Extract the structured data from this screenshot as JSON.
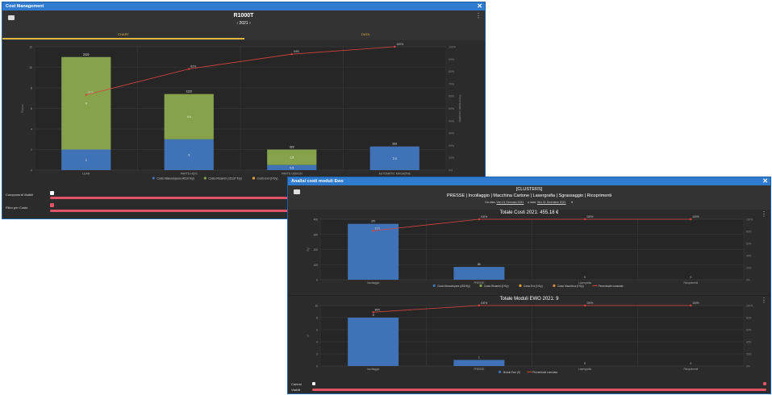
{
  "window1": {
    "title": "Cost Management",
    "close": "✕",
    "header_title": "R1000T",
    "year": "2021",
    "prev": "‹",
    "next": "›",
    "tabs": [
      {
        "label": "CHART",
        "active": true
      },
      {
        "label": "DATA",
        "active": false
      }
    ],
    "controls": [
      {
        "label": "Componenti Visibili"
      },
      {
        "label": "Filtro per Costo"
      }
    ],
    "chart_data": {
      "type": "bar",
      "categories": [
        "LEAN",
        "PARTS HQ/S",
        "PARTS DESIGN",
        "AUTOMATIC MAGAZINE"
      ],
      "series": [
        {
          "name": "Costo Manodopera (4510 €/y)",
          "color": "#3f72b6",
          "values": [
            2.0,
            3.0,
            0.5,
            2.3
          ]
        },
        {
          "name": "Costo Ricambi (15137 €/y)",
          "color": "#86a34b",
          "values": [
            9.0,
            4.4,
            1.5,
            0.0
          ]
        },
        {
          "name": "Costo Ext (0 €/y)",
          "color": "#e0a53a",
          "values": [
            0,
            0,
            0,
            0
          ]
        }
      ],
      "cumulative": {
        "name": "Percentuale cumulata",
        "color": "#d9453f",
        "values": [
          61,
          82,
          94,
          100
        ]
      },
      "totals": [
        "2222",
        "1122",
        "222",
        "222"
      ],
      "ylim": [
        0,
        12
      ],
      "yticks": [
        "0",
        "2",
        "4",
        "6",
        "8",
        "10",
        "12"
      ],
      "ylim_right": [
        0,
        100
      ],
      "yticks_right": [
        "0%",
        "10%",
        "20%",
        "30%",
        "40%",
        "50%",
        "60%",
        "70%",
        "80%",
        "90%",
        "100%"
      ],
      "ylabel": "€/anno",
      "ylabel_right": "Percentuale cumulata"
    }
  },
  "window2": {
    "title": "Analisi costi moduli Ewo",
    "close": "✕",
    "cluster_title": "[CLUSTERS]",
    "cluster_list": "PRESSE | Incollaggio | Macchina Cartone | Lasergrafia | Sgrassaggio | Ricoprimenti",
    "date_from_label": "Da data:",
    "date_from": "Ven 01 Gennaio 2021",
    "date_to_label": "a data:",
    "date_to": "Ven 31 Dicembre 2021",
    "chart1": {
      "title": "Totale Costi 2021: 455.18 €",
      "type": "bar",
      "categories": [
        "Incollaggio",
        "PRESSE",
        "Lasergrafia",
        "Ricoprimenti"
      ],
      "series": [
        {
          "name": "Costo Manodopera (455 €/y)",
          "color": "#3f72b6",
          "values": [
            370,
            85,
            0,
            0
          ]
        },
        {
          "name": "Costo Ricambi (0 €/y)",
          "color": "#86a34b",
          "values": [
            0,
            0,
            0,
            0
          ]
        },
        {
          "name": "Costo Ext (0 €/y)",
          "color": "#e0a53a",
          "values": [
            0,
            0,
            0,
            0
          ]
        },
        {
          "name": "Costo Macchina (0 €/y)",
          "color": "#d98c3a",
          "values": [
            0,
            0,
            0,
            0
          ]
        }
      ],
      "cumulative": {
        "name": "Percentuale cumulata",
        "color": "#d9453f",
        "values": [
          81,
          100,
          100,
          100
        ]
      },
      "bar_labels": [
        "370",
        "85",
        "0",
        "0"
      ],
      "ylim": [
        0,
        400
      ],
      "yticks": [
        "0",
        "100",
        "200",
        "300",
        "400"
      ],
      "ylim_right": [
        0,
        100
      ],
      "yticks_right": [
        "0%",
        "20%",
        "40%",
        "60%",
        "80%",
        "100%"
      ],
      "ylabel": "€/y"
    },
    "chart2": {
      "title": "Totale Moduli EWO 2021: 9",
      "type": "bar",
      "categories": [
        "Incollaggio",
        "PRESSE",
        "Lasergrafia",
        "Ricoprimenti"
      ],
      "series": [
        {
          "name": "Moduli Ewo (9)",
          "color": "#3f72b6",
          "values": [
            8,
            1,
            0,
            0
          ]
        }
      ],
      "cumulative": {
        "name": "Percentuale cumulata",
        "color": "#d9453f",
        "values": [
          89,
          100,
          100,
          100
        ]
      },
      "bar_labels": [
        "8",
        "1",
        "0",
        "0"
      ],
      "ylim": [
        0,
        10
      ],
      "yticks": [
        "0",
        "2",
        "4",
        "6",
        "8",
        "10"
      ],
      "ylim_right": [
        0,
        100
      ],
      "yticks_right": [
        "0%",
        "20%",
        "40%",
        "60%",
        "80%",
        "100%"
      ],
      "ylabel": "n°"
    },
    "controls": [
      {
        "label": "Cartoni"
      },
      {
        "label": "Visibili"
      }
    ]
  }
}
